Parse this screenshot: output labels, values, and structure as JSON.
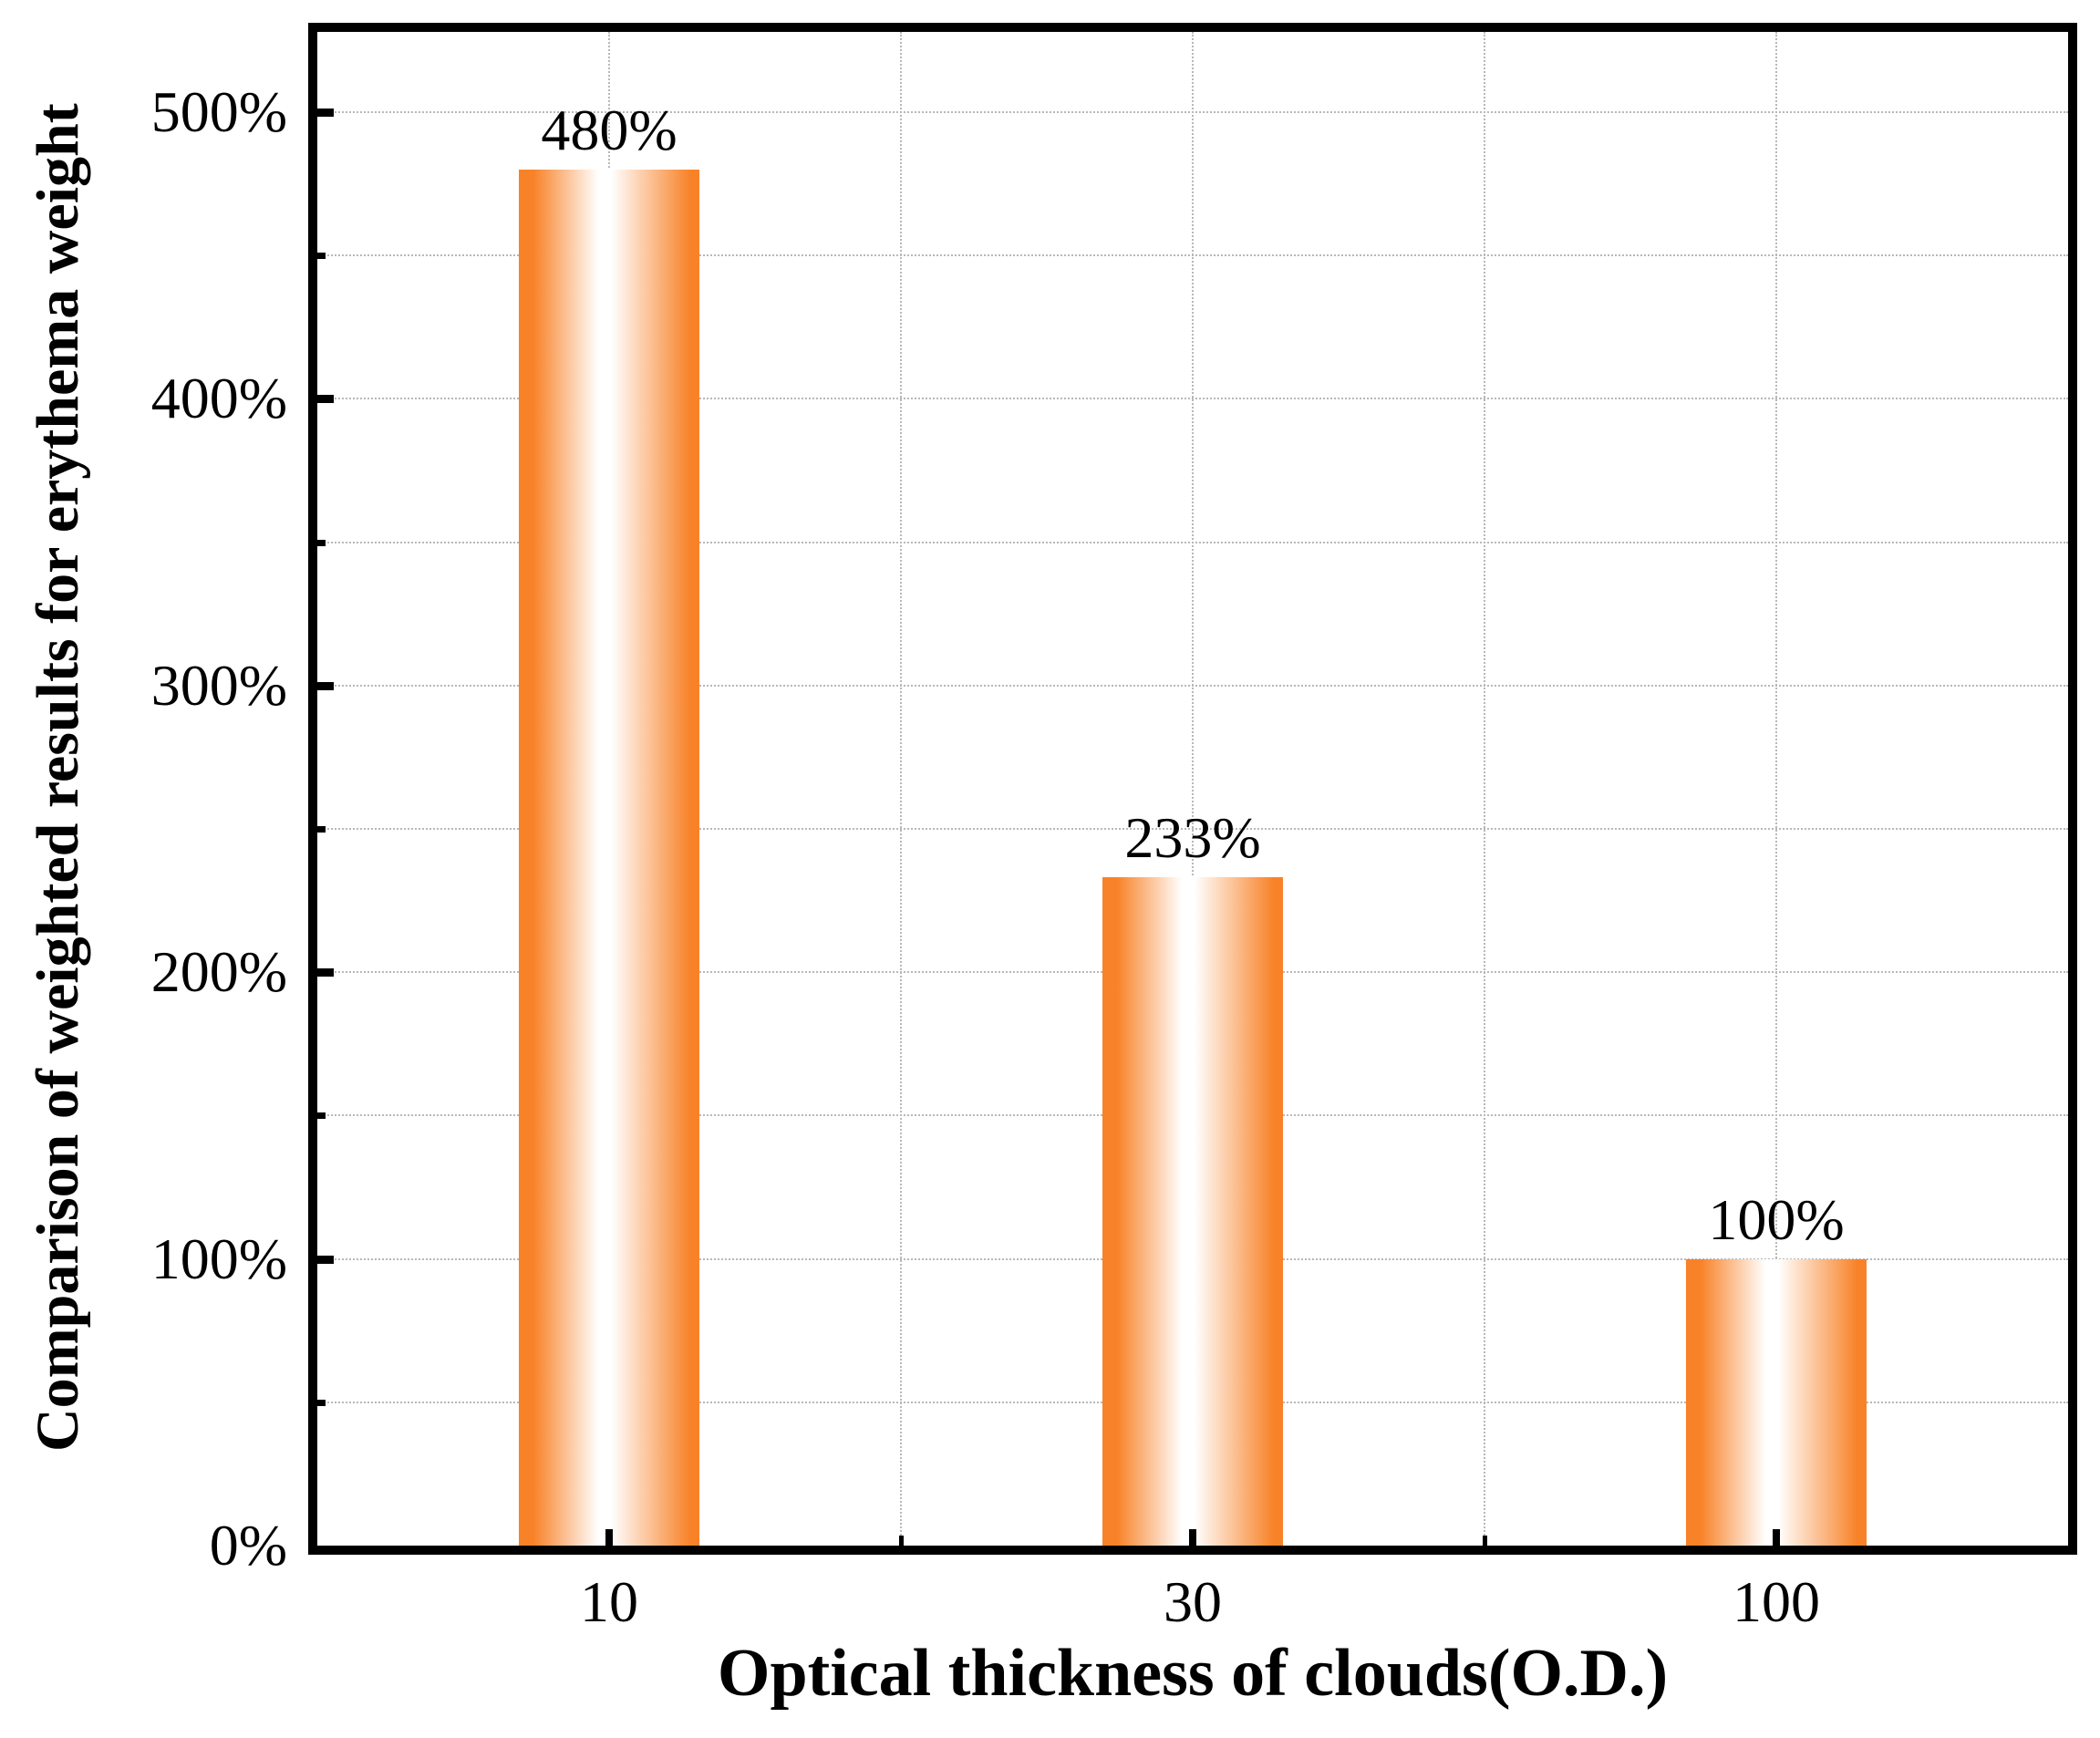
{
  "chart_data": {
    "type": "bar",
    "title": "",
    "categories": [
      "10",
      "30",
      "100"
    ],
    "values": [
      480,
      233,
      100
    ],
    "bar_value_labels": [
      "480%",
      "233%",
      "100%"
    ],
    "xlabel": "Optical thickness of clouds(O.D.)",
    "ylabel": "Comparison of weighted results for erythema weight",
    "ylim": [
      0,
      528
    ],
    "yticks_major": [
      0,
      100,
      200,
      300,
      400,
      500
    ],
    "ytick_labels": [
      "0%",
      "100%",
      "200%",
      "300%",
      "400%",
      "500%"
    ],
    "yticks_minor": [
      50,
      150,
      250,
      350,
      450
    ],
    "ygrid_interval": 50,
    "grid": "dotted horizontal lines every 50%; dotted vertical lines at category centers and midpoints",
    "legend_position": "none",
    "tick_direction": "in",
    "colors": {
      "bar_edge": "#F88228",
      "bar_center": "#FFFFFF",
      "grid": "#B8B8B8",
      "axis": "#000000",
      "text": "#000000",
      "background": "#FFFFFF"
    }
  }
}
